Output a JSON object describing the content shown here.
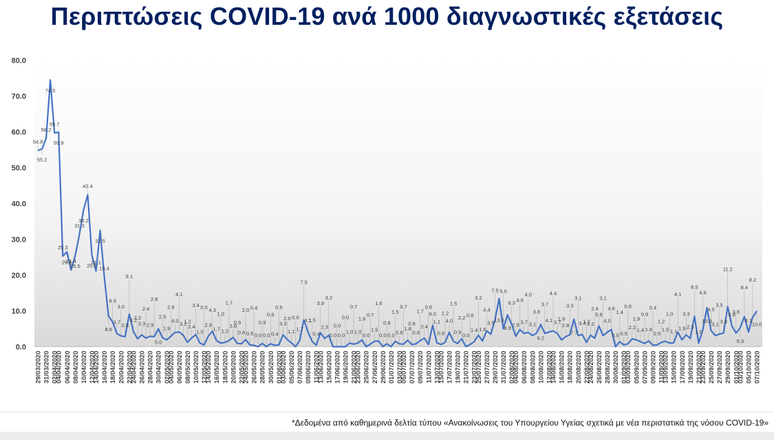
{
  "title": "Περιπτώσεις COVID-19 ανά 1000 διαγνωστικές εξετάσεις",
  "footnote": "*Δεδομένα από καθημερινά δελτία τύπου «Ανακοίνωσεις του Υπουργείου Υγείας σχετικά με νέα περιστατικά της νόσου COVID-19»",
  "colors": {
    "title": "#002060",
    "line": "#4472C4",
    "label": "#404040"
  },
  "chart_data": {
    "type": "line",
    "title": "",
    "xlabel": "",
    "ylabel": "",
    "ylim": [
      0,
      80
    ],
    "yticks": [
      "0.0",
      "10.0",
      "20.0",
      "30.0",
      "40.0",
      "50.0",
      "60.0",
      "70.0",
      "80.0"
    ],
    "grid": false,
    "legend": "none",
    "background": "white-to-grey vertical gradient",
    "x_tick_labels": [
      "29/03/2020",
      "31/03/2020",
      "02/04/2020",
      "04/04/2020",
      "06/04/2020",
      "08/04/2020",
      "10/04/2020",
      "12/04/2020",
      "14/04/2020",
      "16/04/2020",
      "18/04/2020",
      "20/04/2020",
      "22/04/2020",
      "24/04/2020",
      "26/04/2020",
      "28/04/2020",
      "30/04/2020",
      "02/05/2020",
      "04/05/2020",
      "06/05/2020",
      "08/05/2020",
      "10/05/2020",
      "12/05/2020",
      "14/05/2020",
      "16/05/2020",
      "18/05/2020",
      "20/05/2020",
      "22/05/2020",
      "24/05/2020",
      "26/05/2020",
      "28/05/2020",
      "30/05/2020",
      "01/06/2020",
      "03/06/2020",
      "05/06/2020",
      "07/06/2020",
      "09/06/2020",
      "11/06/2020",
      "13/06/2020",
      "15/06/2020",
      "17/06/2020",
      "19/06/2020",
      "21/06/2020",
      "23/06/2020",
      "25/06/2020",
      "27/06/2020",
      "29/06/2020",
      "01/07/2020",
      "03/07/2020",
      "05/07/2020",
      "07/07/2020",
      "09/07/2020",
      "11/07/2020",
      "13/07/2020",
      "15/07/2020",
      "17/07/2020",
      "19/07/2020",
      "21/07/2020",
      "23/07/2020",
      "25/07/2020",
      "27/07/2020",
      "29/07/2020",
      "31/07/2020",
      "02/08/2020",
      "04/08/2020",
      "06/08/2020",
      "08/08/2020",
      "10/08/2020",
      "12/08/2020",
      "14/08/2020",
      "16/08/2020",
      "18/08/2020",
      "20/08/2020",
      "22/08/2020",
      "24/08/2020",
      "26/08/2020",
      "28/08/2020",
      "30/08/2020",
      "01/09/2020",
      "03/09/2020",
      "05/09/2020",
      "07/09/2020",
      "09/09/2020",
      "11/09/2020",
      "13/09/2020",
      "15/09/2020",
      "17/09/2020",
      "19/09/2020",
      "21/09/2020",
      "23/09/2020",
      "25/09/2020",
      "27/09/2020",
      "29/09/2020",
      "01/10/2020",
      "03/10/2020",
      "05/10/2020",
      "07/10/2020"
    ],
    "series": [
      {
        "values": [
          54.8,
          55.2,
          58.2,
          74.5,
          59.7,
          59.9,
          25.3,
          26.5,
          21.4,
          25.5,
          31.3,
          38.2,
          42.4,
          25.6,
          21.1,
          32.5,
          19.4,
          8.6,
          6.9,
          3.7,
          3.0,
          2.8,
          9.1,
          4.2,
          2.2,
          3.3,
          2.4,
          2.9,
          2.8,
          5.0,
          2.5,
          1.9,
          2.9,
          4.0,
          4.1,
          3.2,
          1.2,
          2.4,
          3.4,
          1.0,
          0.5,
          2.9,
          4.3,
          1.7,
          1.0,
          1.2,
          1.7,
          2.6,
          0.9,
          0.8,
          2.0,
          0.5,
          0.4,
          0.0,
          0.9,
          0.0,
          0.8,
          0.4,
          0.5,
          3.3,
          2.0,
          1.1,
          0.0,
          1.7,
          7.5,
          4.1,
          1.5,
          0.4,
          3.9,
          2.3,
          3.2,
          0.0,
          0.0,
          0.0,
          0.0,
          1.0,
          0.7,
          1.0,
          1.9,
          0.0,
          0.7,
          1.5,
          1.6,
          0.0,
          0.8,
          0.0,
          1.5,
          0.8,
          0.7,
          1.8,
          0.6,
          0.8,
          1.7,
          2.4,
          0.6,
          6.0,
          1.1,
          0.6,
          1.2,
          4.0,
          1.5,
          0.9,
          2.2,
          0.0,
          0.6,
          1.4,
          3.2,
          1.6,
          4.4,
          3.5,
          7.5,
          13.5,
          5.0,
          8.9,
          6.3,
          2.9,
          4.8,
          3.7,
          4.0,
          3.1,
          3.8,
          6.2,
          3.7,
          4.1,
          4.4,
          3.7,
          1.9,
          2.8,
          3.3,
          7.7,
          3.1,
          3.4,
          1.2,
          3.2,
          2.4,
          5.8,
          3.1,
          4.0,
          4.8,
          0.0,
          1.4,
          0.5,
          0.8,
          2.2,
          1.9,
          1.4,
          0.9,
          1.6,
          0.4,
          0.5,
          1.2,
          1.5,
          1.0,
          1.1,
          4.1,
          1.9,
          3.3,
          2.3,
          8.5,
          1.0,
          4.6,
          10.9,
          4.5,
          3.1,
          3.5,
          3.8,
          11.2,
          5.8,
          3.8,
          5.3,
          8.4,
          4.1,
          8.2,
          10.0
        ],
        "value_labels": [
          "54.8",
          "55.2",
          "58.2",
          "74.5",
          "59.7",
          "59.9",
          "25.3",
          "26.5",
          "21.4",
          "25.5",
          "31.3",
          "38.2",
          "42.4",
          "25.6",
          "21.1",
          "32.5",
          "19.4",
          "8.6",
          "6.9",
          "3.7",
          "3.0",
          "2.8",
          "9.1",
          "4.2",
          "2.2",
          "3.3",
          "2.4",
          "2.9",
          "2.8",
          "5.0",
          "2.5",
          "1.9",
          "2.9",
          "4.0",
          "4.1",
          "3.2",
          "1.2",
          "2.4",
          "3.4",
          "1.0",
          "0.5",
          "2.9",
          "4.3",
          "1.7",
          "1.0",
          "1.2",
          "1.7",
          "2.6",
          "0.9",
          "0.8",
          "2.0",
          "0.5",
          "0.4",
          "0.0",
          "0.9",
          "0.0",
          "0.8",
          "0.4",
          "0.5",
          "3.3",
          "2.0",
          "1.1",
          "0.0",
          "1.7",
          "7.5",
          "4.1",
          "1.5",
          "0.4",
          "3.9",
          "2.3",
          "3.2",
          "0.0",
          "0.0",
          "0.0",
          "0.0",
          "1.0",
          "0.7",
          "1.0",
          "1.9",
          "0.0",
          "0.7",
          "1.5",
          "1.6",
          "0.0",
          "0.8",
          "0.0",
          "1.5",
          "0.8",
          "0.7",
          "1.8",
          "0.6",
          "0.8",
          "1.7",
          "2.4",
          "0.6",
          "6.0",
          "1.1",
          "0.6",
          "1.2",
          "4.0",
          "1.5",
          "0.9",
          "2.2",
          "0.0",
          "0.6",
          "1.4",
          "3.2",
          "1.6",
          "4.4",
          "3.5",
          "7.5",
          "13.5",
          "5.0",
          "8.9",
          "6.3",
          "2.9",
          "4.8",
          "3.7",
          "4.0",
          "3.1",
          "3.8",
          "6.2",
          "3.7",
          "4.1",
          "4.4",
          "3.7",
          "1.9",
          "2.8",
          "3.3",
          "7.7",
          "3.1",
          "3.4",
          "1.2",
          "3.2",
          "2.4",
          "5.8",
          "3.1",
          "4.0",
          "4.8",
          "0.0",
          "1.4",
          "0.5",
          "0.8",
          "2.2",
          "1.9",
          "1.4",
          "0.9",
          "1.6",
          "0.4",
          "0.5",
          "1.2",
          "1.5",
          "1.0",
          "1.1",
          "4.1",
          "1.9",
          "3.3",
          "2.3",
          "8.5",
          "1.0",
          "4.6",
          "10.9",
          "4.5",
          "3.1",
          "3.5",
          "3.8",
          "11.2",
          "5.8",
          "3.8",
          "5.3",
          "8.4",
          "4.1",
          "8.2",
          "10.0"
        ]
      }
    ]
  }
}
